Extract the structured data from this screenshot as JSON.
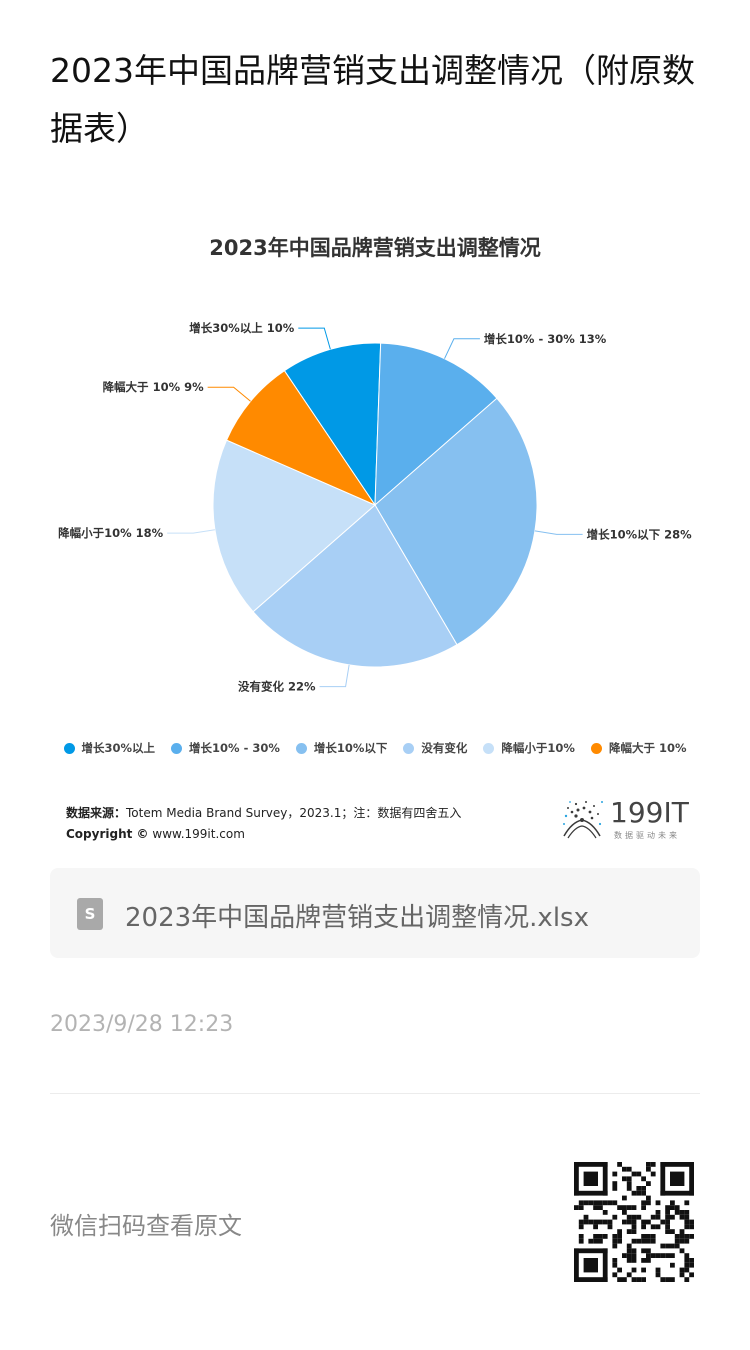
{
  "page": {
    "title": "2023年中国品牌营销支出调整情况（附原数据表）"
  },
  "chart_data": {
    "type": "pie",
    "title": "2023年中国品牌营销支出调整情况",
    "slices": [
      {
        "name": "增长30%以上",
        "value": 10,
        "color": "#0099e6",
        "label": "增长30%以上 10%"
      },
      {
        "name": "增长10% - 30%",
        "value": 13,
        "color": "#5aafed",
        "label": "增长10% - 30% 13%"
      },
      {
        "name": "增长10%以下",
        "value": 28,
        "color": "#86c0f0",
        "label": "增长10%以下 28%"
      },
      {
        "name": "没有变化",
        "value": 22,
        "color": "#a8cff5",
        "label": "没有变化 22%"
      },
      {
        "name": "降幅小于10%",
        "value": 18,
        "color": "#c6e0f8",
        "label": "降幅小于10% 18%"
      },
      {
        "name": "降幅大于 10%",
        "value": 9,
        "color": "#ff8a00",
        "label": "降幅大于 10% 9%"
      }
    ],
    "legend_position": "bottom"
  },
  "source": {
    "label": "数据来源：",
    "text": "Totem Media Brand Survey，2023.1；注：数据有四舍五入",
    "copyright_label": "Copyright ©",
    "copyright_site": "www.199it.com"
  },
  "logo": {
    "text": "199IT",
    "sub": "数据驱动未来"
  },
  "file": {
    "icon": "document-icon",
    "icon_letter": "S",
    "name": "2023年中国品牌营销支出调整情况.xlsx"
  },
  "meta": {
    "date": "2023/9/28 12:23",
    "wechat_text": "微信扫码查看原文"
  },
  "qr": {
    "icon": "qr-code-icon"
  }
}
